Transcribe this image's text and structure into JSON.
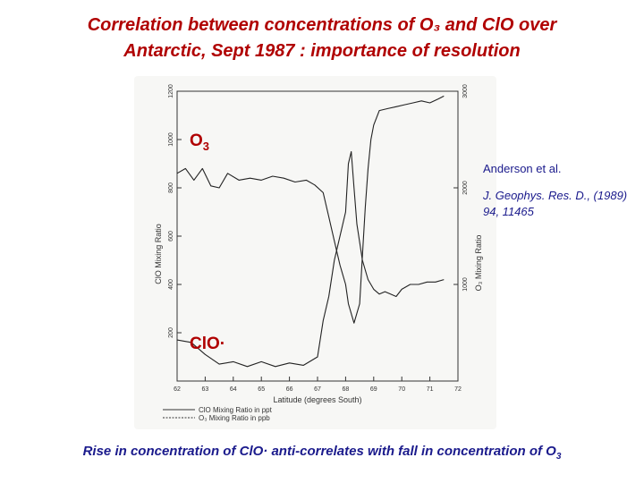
{
  "title": {
    "line1": "Correlation between concentrations of O₃ and ClO over",
    "line2": "Antarctic, Sept 1987 :  importance of resolution"
  },
  "labels": {
    "o3_base": "O",
    "o3_sub": "3",
    "clo": "ClO·"
  },
  "reference": {
    "author": "Anderson et al.",
    "journal": "J. Geophys. Res. D., (1989) 94, 11465"
  },
  "caption": {
    "text": "Rise in concentration of ClO· anti-correlates with fall in concentration of O",
    "sub": "3"
  },
  "chart_data": {
    "type": "line",
    "xlabel": "Latitude (degrees South)",
    "ylabel_left": "ClO Mixing Ratio",
    "ylabel_right": "O₃ Mixing Ratio",
    "xlim": [
      62,
      72
    ],
    "ylim_left": [
      0,
      1200
    ],
    "ylim_right": [
      0,
      3000
    ],
    "x_ticks": [
      "62",
      "63",
      "64",
      "65",
      "66",
      "67",
      "68",
      "69",
      "70",
      "71",
      "72"
    ],
    "y_ticks_left": [
      "200",
      "400",
      "600",
      "800",
      "1000",
      "1200"
    ],
    "y_ticks_right": [
      "1000",
      "2000",
      "3000"
    ],
    "legend": {
      "placement": "bottom-left",
      "entries": [
        "ClO Mixing Ratio in ppt",
        "O₃ Mixing Ratio in ppb"
      ]
    },
    "series": [
      {
        "name": "O₃ Mixing Ratio in ppb",
        "axis": "right",
        "x": [
          62.0,
          62.3,
          62.6,
          62.9,
          63.2,
          63.5,
          63.8,
          64.2,
          64.6,
          65.0,
          65.4,
          65.8,
          66.2,
          66.6,
          66.9,
          67.2,
          67.4,
          67.6,
          67.8,
          68.0,
          68.1,
          68.3,
          68.5,
          68.6,
          68.7,
          68.8,
          68.9,
          69.0,
          69.2,
          69.5,
          69.8,
          70.1,
          70.4,
          70.7,
          71.0,
          71.3,
          71.5
        ],
        "y": [
          2150,
          2200,
          2080,
          2200,
          2020,
          2000,
          2150,
          2080,
          2100,
          2080,
          2120,
          2100,
          2060,
          2080,
          2030,
          1950,
          1700,
          1450,
          1200,
          1000,
          800,
          600,
          800,
          1300,
          1800,
          2200,
          2500,
          2650,
          2800,
          2820,
          2840,
          2860,
          2880,
          2900,
          2880,
          2920,
          2950
        ]
      },
      {
        "name": "ClO Mixing Ratio in ppt",
        "axis": "left",
        "x": [
          62.0,
          62.5,
          63.0,
          63.5,
          64.0,
          64.5,
          65.0,
          65.5,
          66.0,
          66.5,
          67.0,
          67.2,
          67.4,
          67.6,
          67.8,
          68.0,
          68.1,
          68.2,
          68.3,
          68.4,
          68.6,
          68.8,
          69.0,
          69.2,
          69.4,
          69.6,
          69.8,
          70.0,
          70.3,
          70.6,
          70.9,
          71.2,
          71.5
        ],
        "y": [
          170,
          160,
          110,
          70,
          80,
          60,
          80,
          60,
          75,
          65,
          100,
          250,
          350,
          500,
          600,
          700,
          900,
          950,
          800,
          650,
          500,
          420,
          380,
          360,
          370,
          360,
          350,
          380,
          400,
          400,
          410,
          410,
          420
        ]
      }
    ]
  }
}
